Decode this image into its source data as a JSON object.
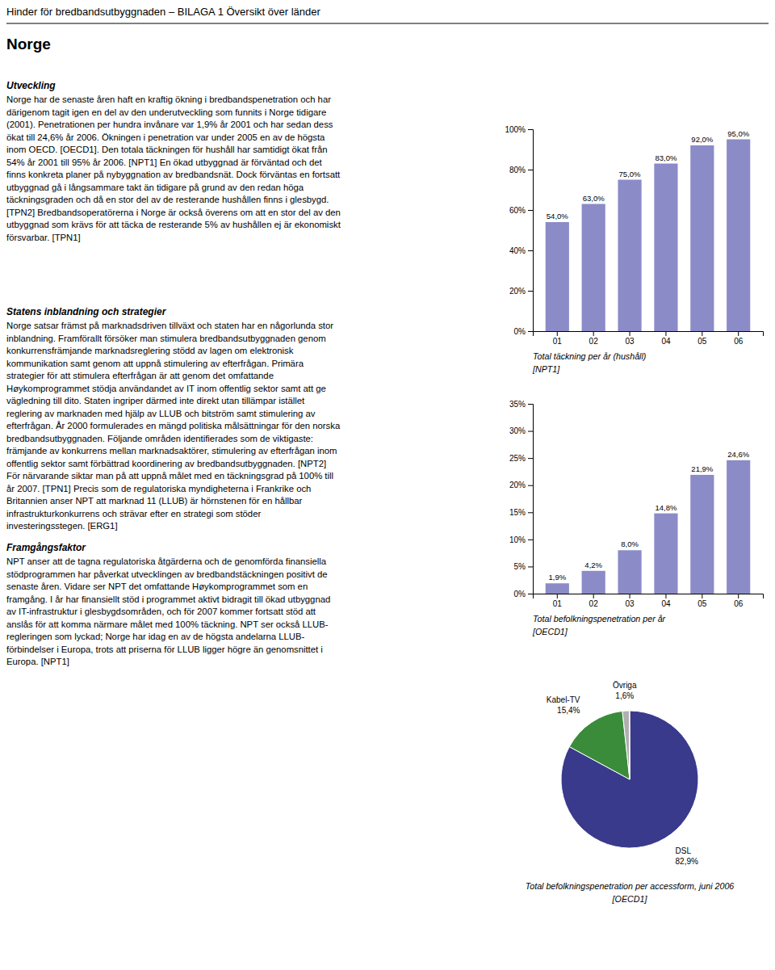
{
  "header": "Hinder för bredbandsutbyggnaden – BILAGA 1 Översikt över länder",
  "section_title": "Norge",
  "sections": [
    {
      "title": "Utveckling",
      "lines": [
        "Norge har de senaste åren haft en kraftig ökning i bredbandspenetration och har",
        "därigenom tagit igen en del av den underutveckling som funnits i Norge tidigare",
        "(2001). Penetrationen per hundra invånare var 1,9% år 2001 och har sedan dess",
        "ökat till 24,6% år 2006. Ökningen i penetration var under 2005 en av de högsta",
        "inom OECD. [OECD1]. Den totala täckningen för hushåll har samtidigt ökat från",
        "54% år 2001 till 95% år 2006. [NPT1] En ökad utbyggnad är förväntad och det",
        "finns konkreta planer på nybyggnation av bredbandsnät. Dock förväntas en fortsatt",
        "utbyggnad gå i långsammare takt än tidigare på grund av den redan höga",
        "täckningsgraden och då en stor del av de resterande hushållen finns i glesbygd.",
        "[TPN2] Bredbandsoperatörerna i Norge är också överens om att en stor del av den",
        "utbyggnad som krävs för att täcka de resterande 5% av hushållen ej är ekonomiskt",
        "försvarbar. [TPN1]"
      ]
    },
    {
      "title": "Statens inblandning och strategier",
      "lines": [
        "Norge satsar främst på marknadsdriven tillväxt och staten har en någorlunda stor",
        "inblandning. Framförallt försöker man stimulera bredbandsutbyggnaden genom",
        "konkurrensfrämjande marknadsreglering stödd av lagen om elektronisk",
        "kommunikation samt genom att uppnå stimulering av efterfrågan. Primära",
        "strategier för att stimulera efterfrågan är att genom det omfattande",
        "Høykomprogrammet stödja användandet av IT inom offentlig sektor samt att ge",
        "vägledning till dito. Staten ingriper därmed inte direkt utan tillämpar istället",
        "reglering av marknaden med hjälp av LLUB och bitström samt stimulering av",
        "efterfrågan. År 2000 formulerades en mängd politiska målsättningar för den norska",
        "bredbandsutbyggnaden. Följande områden identifierades som de viktigaste:",
        "främjande av konkurrens mellan marknadsaktörer, stimulering av efterfrågan inom",
        "offentlig sektor samt förbättrad koordinering av bredbandsutbyggnaden. [NPT2]",
        "För närvarande siktar man på att uppnå målet med en täckningsgrad på 100% till",
        "år 2007. [TPN1] Precis som de regulatoriska myndigheterna i Frankrike och",
        "Britannien anser NPT att marknad 11 (LLUB) är hörnstenen för en hållbar",
        "infrastrukturkonkurrens och strävar efter en strategi som stöder",
        "investeringsstegen. [ERG1]"
      ]
    },
    {
      "title": "Framgångsfaktor",
      "lines": [
        "NPT anser att de tagna regulatoriska åtgärderna och de genomförda finansiella",
        "stödprogrammen har påverkat utvecklingen av bredbandstäckningen positivt de",
        "senaste åren. Vidare ser NPT det omfattande Høykomprogrammet som en",
        "framgång. I år har finansiellt stöd i programmet aktivt bidragit till ökad utbyggnad",
        "av IT-infrastruktur i glesbygdsområden, och för 2007 kommer fortsatt stöd att",
        "anslås för att komma närmare målet med 100% täckning. NPT ser också LLUB-",
        "regleringen som lyckad; Norge har idag en av de högsta andelarna LLUB-",
        "förbindelser i Europa, trots att priserna för LLUB ligger högre än genomsnittet i",
        "Europa. [NPT1]"
      ]
    }
  ],
  "chart_data": [
    {
      "type": "bar",
      "title": "Total täckning per år (hushåll)",
      "subtitle": "[NPT1]",
      "categories": [
        "01",
        "02",
        "03",
        "04",
        "05",
        "06"
      ],
      "values": [
        54.0,
        63.0,
        75.0,
        83.0,
        92.0,
        95.0
      ],
      "value_labels": [
        "54,0%",
        "63,0%",
        "75,0%",
        "83,0%",
        "92,0%",
        "95,0%"
      ],
      "data_labels": true,
      "color": "#8b8bc8",
      "ylim": [
        0,
        100
      ],
      "yticks": [
        {
          "value": 0,
          "label": "0%"
        },
        {
          "value": 20,
          "label": "20%"
        },
        {
          "value": 40,
          "label": "40%"
        },
        {
          "value": 60,
          "label": "60%"
        },
        {
          "value": 80,
          "label": "80%"
        },
        {
          "value": 100,
          "label": "100%"
        }
      ],
      "grid": false
    },
    {
      "type": "bar",
      "title": "Total befolkningspenetration per år",
      "subtitle": "[OECD1]",
      "categories": [
        "01",
        "02",
        "03",
        "04",
        "05",
        "06"
      ],
      "values": [
        1.9,
        4.2,
        8.0,
        14.8,
        21.9,
        24.6
      ],
      "value_labels": [
        "1,9%",
        "4,2%",
        "8,0%",
        "14,8%",
        "21,9%",
        "24,6%"
      ],
      "data_labels": true,
      "color": "#8b8bc8",
      "ylim": [
        0,
        35
      ],
      "yticks": [
        {
          "value": 0,
          "label": "0%"
        },
        {
          "value": 5,
          "label": "5%"
        },
        {
          "value": 10,
          "label": "10%"
        },
        {
          "value": 15,
          "label": "15%"
        },
        {
          "value": 20,
          "label": "20%"
        },
        {
          "value": 25,
          "label": "25%"
        },
        {
          "value": 30,
          "label": "30%"
        },
        {
          "value": 35,
          "label": "35%"
        }
      ],
      "grid": false
    },
    {
      "type": "pie",
      "title": "Total befolkningspenetration per accessform, juni 2006",
      "subtitle": "[OECD1]",
      "categories": [
        "DSL",
        "Kabel-TV",
        "Övriga",
        null
      ],
      "values": [
        82.9,
        15.4,
        1.6,
        0.1
      ],
      "value_labels": [
        "82,9%",
        "15,4%",
        "1,6%",
        null
      ],
      "data_labels": true,
      "colors": [
        "#3a3a8c",
        "#3a8c3a",
        "#b0b0b0",
        "#7070b0"
      ]
    }
  ]
}
